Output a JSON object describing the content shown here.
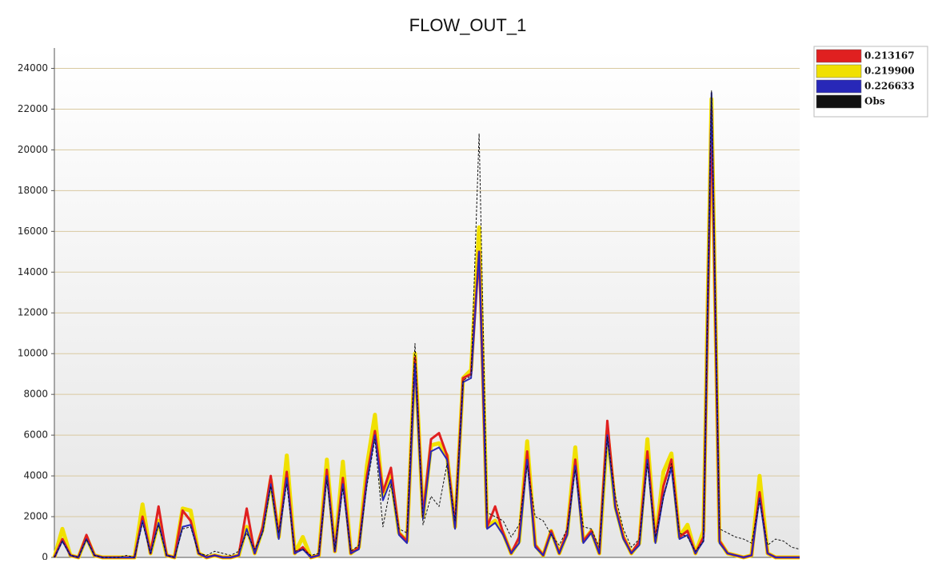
{
  "chart_data": {
    "type": "line",
    "title": "FLOW_OUT_1",
    "ylim": [
      0,
      25000
    ],
    "yticks": [
      0,
      2000,
      4000,
      6000,
      8000,
      10000,
      12000,
      14000,
      16000,
      18000,
      20000,
      22000,
      24000
    ],
    "grid": true,
    "legend": "outside-top-right",
    "series": [
      {
        "name": "0.213167",
        "color": "#e02020",
        "values": [
          0,
          900,
          100,
          0,
          1100,
          100,
          0,
          0,
          0,
          0,
          0,
          2000,
          200,
          2500,
          100,
          0,
          2300,
          1800,
          200,
          0,
          100,
          0,
          0,
          100,
          2400,
          200,
          1500,
          4000,
          1000,
          4200,
          200,
          500,
          0,
          100,
          4300,
          300,
          3900,
          200,
          500,
          4000,
          6200,
          3200,
          4400,
          1200,
          800,
          9800,
          2000,
          5800,
          6100,
          5000,
          1500,
          8800,
          9000,
          15000,
          1500,
          2500,
          1200,
          200,
          1000,
          5200,
          600,
          100,
          1300,
          200,
          1300,
          4800,
          800,
          1300,
          200,
          6700,
          2500,
          1000,
          200,
          800,
          5200,
          800,
          3500,
          4800,
          1000,
          1300,
          200,
          1000,
          22000,
          800,
          200,
          100,
          0,
          100,
          3200,
          200,
          0,
          0,
          0,
          0
        ]
      },
      {
        "name": "0.219900",
        "color": "#f0e000",
        "values": [
          0,
          1400,
          100,
          0,
          1000,
          100,
          0,
          0,
          0,
          0,
          0,
          2600,
          200,
          1800,
          100,
          0,
          2400,
          2300,
          200,
          0,
          100,
          0,
          0,
          100,
          1500,
          200,
          1400,
          3800,
          1000,
          5000,
          200,
          1000,
          0,
          100,
          4800,
          300,
          4700,
          200,
          500,
          4500,
          7000,
          3000,
          4000,
          1200,
          800,
          10000,
          2000,
          5500,
          5600,
          5000,
          1500,
          8800,
          9200,
          16200,
          1500,
          1800,
          1200,
          200,
          800,
          5700,
          600,
          100,
          1300,
          200,
          1200,
          5400,
          800,
          1300,
          200,
          6200,
          2500,
          1000,
          200,
          700,
          5800,
          800,
          4200,
          5100,
          1000,
          1600,
          200,
          1300,
          22500,
          800,
          200,
          100,
          0,
          100,
          4000,
          200,
          0,
          0,
          0,
          0
        ]
      },
      {
        "name": "0.226633",
        "color": "#2828b8",
        "values": [
          0,
          800,
          100,
          0,
          900,
          100,
          0,
          0,
          0,
          0,
          0,
          1800,
          200,
          1700,
          100,
          0,
          1500,
          1600,
          200,
          0,
          100,
          0,
          0,
          100,
          1400,
          200,
          1300,
          3600,
          900,
          3900,
          200,
          400,
          0,
          100,
          4000,
          300,
          3600,
          200,
          400,
          3700,
          6000,
          2800,
          3800,
          1100,
          700,
          9500,
          1900,
          5200,
          5400,
          4800,
          1400,
          8600,
          8800,
          15000,
          1400,
          1700,
          1100,
          200,
          700,
          4800,
          500,
          100,
          1200,
          200,
          1100,
          4500,
          700,
          1200,
          200,
          6000,
          2400,
          900,
          200,
          600,
          4800,
          700,
          3000,
          4400,
          900,
          1100,
          200,
          800,
          22800,
          700,
          200,
          100,
          0,
          100,
          2900,
          200,
          0,
          0,
          0,
          0
        ]
      },
      {
        "name": "Obs",
        "color": "#111111",
        "values": [
          0,
          800,
          100,
          0,
          900,
          100,
          0,
          0,
          0,
          100,
          0,
          1700,
          200,
          1600,
          100,
          0,
          1400,
          1500,
          200,
          100,
          300,
          200,
          100,
          300,
          1200,
          400,
          1200,
          3500,
          1200,
          3600,
          300,
          400,
          100,
          200,
          3800,
          400,
          3400,
          300,
          600,
          3500,
          5800,
          1500,
          3600,
          1400,
          1200,
          10500,
          1600,
          3000,
          2500,
          4600,
          1800,
          8700,
          8900,
          20800,
          2200,
          2000,
          1800,
          1000,
          1600,
          4500,
          2000,
          1800,
          1100,
          600,
          1400,
          4300,
          1500,
          1400,
          500,
          5900,
          3000,
          1400,
          500,
          900,
          4600,
          1000,
          2900,
          4600,
          1200,
          1000,
          300,
          800,
          22900,
          1400,
          1200,
          1000,
          900,
          700,
          2800,
          600,
          900,
          800,
          500,
          400
        ]
      }
    ]
  }
}
